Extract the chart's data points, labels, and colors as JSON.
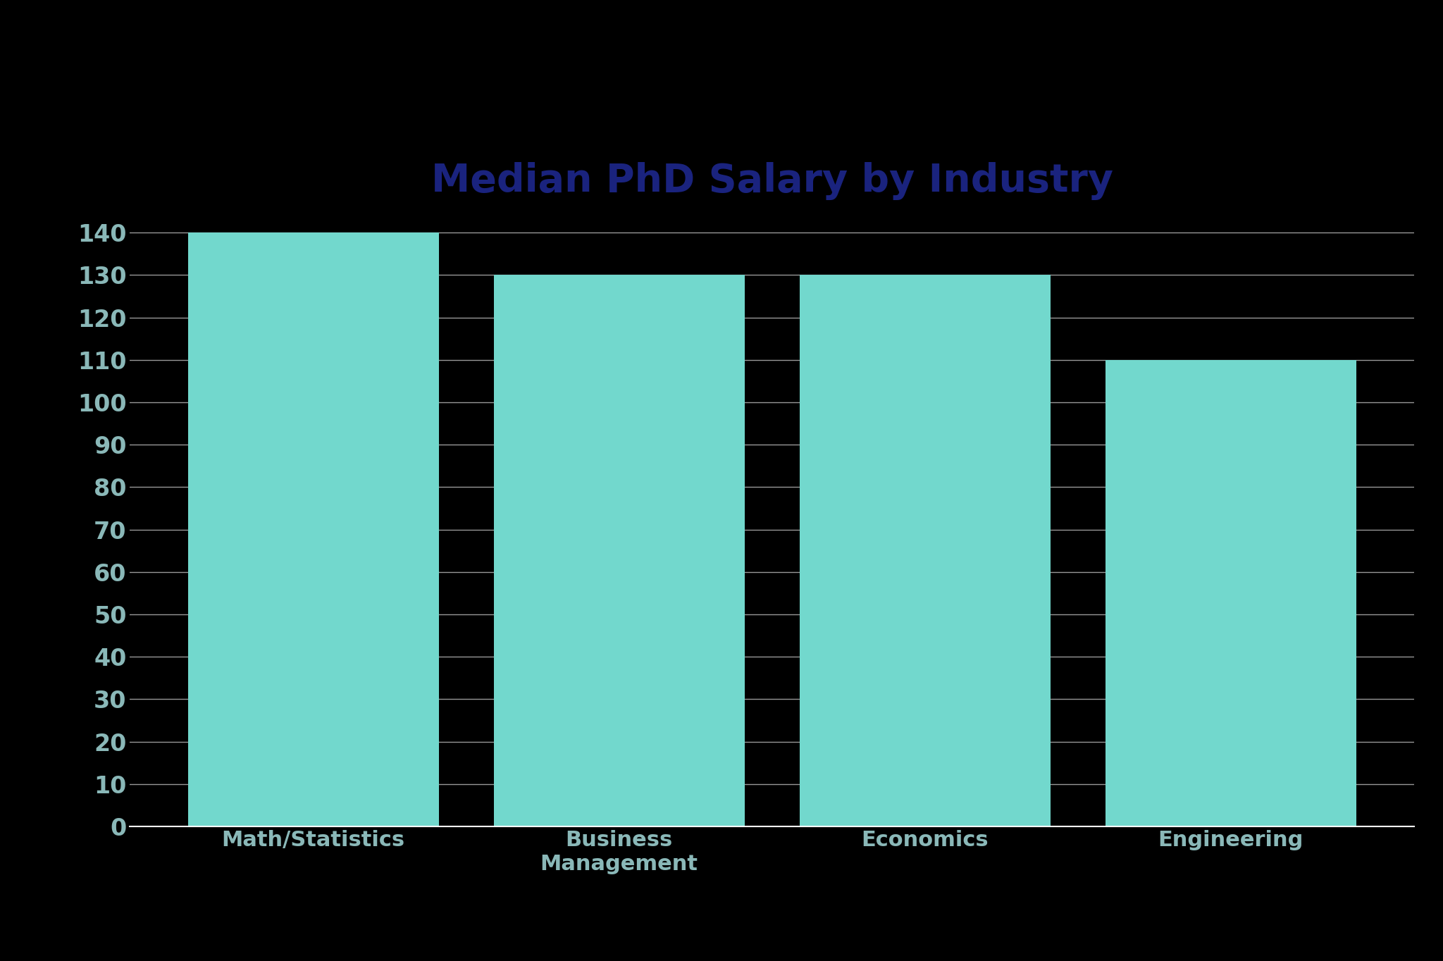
{
  "categories": [
    "Math/Statistics",
    "Business\nManagement",
    "Economics",
    "Engineering"
  ],
  "values": [
    140,
    130,
    130,
    110
  ],
  "bar_color": "#72d8cd",
  "background_color": "#000000",
  "title": "Median PhD Salary by Industry",
  "title_color": "#1a237e",
  "title_fontsize": 40,
  "tick_label_color": "#8ab8b8",
  "tick_fontsize": 24,
  "xlabel_fontsize": 22,
  "ylim": [
    0,
    145
  ],
  "yticks": [
    0,
    10,
    20,
    30,
    40,
    50,
    60,
    70,
    80,
    90,
    100,
    110,
    120,
    130,
    140
  ],
  "grid_color": "#ffffff",
  "grid_alpha": 0.6,
  "grid_linewidth": 1.0,
  "bar_width": 0.82,
  "spine_color": "#ffffff"
}
